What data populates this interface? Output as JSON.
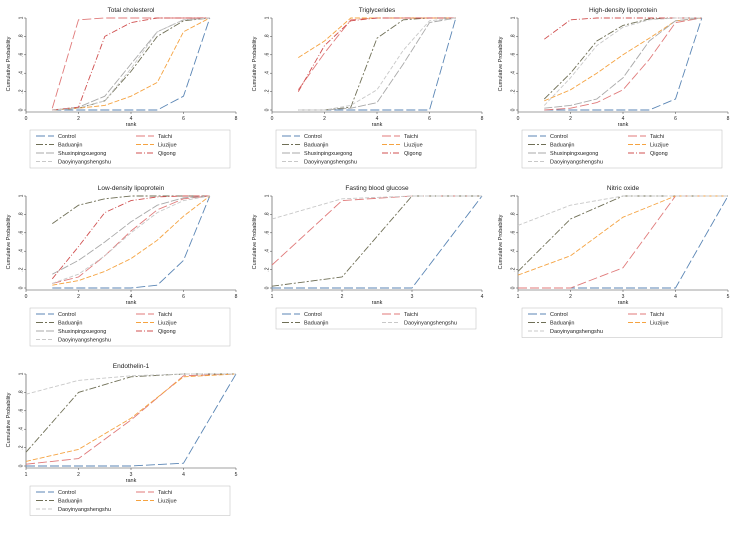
{
  "colors": {
    "Control": "#5b86b5",
    "Taichi": "#e07a7a",
    "Baduanjin": "#6f6f56",
    "Liuzijue": "#f5a341",
    "Shuxinpingxuegong": "#a9a9a9",
    "Qigong": "#d05050",
    "Daoyinyangshengshu": "#c8c8c8"
  },
  "chart_data": [
    {
      "type": "line",
      "title": "Total cholesterol",
      "xlabel": "rank",
      "ylabel": "Cumulative Probability",
      "xlim": [
        0,
        8
      ],
      "ylim": [
        0,
        1
      ],
      "xticks": [
        "0",
        "2",
        "4",
        "6",
        "8"
      ],
      "yticks": [
        "0",
        ".2",
        ".4",
        ".6",
        ".8",
        "1"
      ],
      "legend": [
        "Control",
        "Taichi",
        "Baduanjin",
        "Liuzijue",
        "Shuxinpingxuegong",
        "Qigong",
        "Daoyinyangshengshu"
      ],
      "series": [
        {
          "name": "Control",
          "x": [
            1,
            2,
            3,
            4,
            5,
            6,
            7
          ],
          "values": [
            0,
            0,
            0,
            0,
            0,
            0.15,
            1
          ]
        },
        {
          "name": "Taichi",
          "x": [
            1,
            2,
            3,
            4,
            5,
            6,
            7
          ],
          "values": [
            0.02,
            0.98,
            1,
            1,
            1,
            1,
            1
          ]
        },
        {
          "name": "Baduanjin",
          "x": [
            1,
            2,
            3,
            4,
            5,
            6,
            7
          ],
          "values": [
            0,
            0.02,
            0.1,
            0.42,
            0.8,
            0.97,
            1
          ]
        },
        {
          "name": "Liuzijue",
          "x": [
            1,
            2,
            3,
            4,
            5,
            6,
            7
          ],
          "values": [
            0,
            0.02,
            0.05,
            0.15,
            0.3,
            0.85,
            1
          ]
        },
        {
          "name": "Shuxinpingxuegong",
          "x": [
            1,
            2,
            3,
            4,
            5,
            6,
            7
          ],
          "values": [
            0,
            0.03,
            0.15,
            0.5,
            0.85,
            0.98,
            1
          ]
        },
        {
          "name": "Qigong",
          "x": [
            1,
            2,
            3,
            4,
            5,
            6,
            7
          ],
          "values": [
            0,
            0.03,
            0.8,
            0.95,
            1,
            1,
            1
          ]
        },
        {
          "name": "Daoyinyangshengshu",
          "x": [
            1,
            2,
            3,
            4,
            5,
            6,
            7
          ],
          "values": [
            0,
            0.02,
            0.1,
            0.45,
            0.85,
            0.98,
            1
          ]
        }
      ]
    },
    {
      "type": "line",
      "title": "Triglycerides",
      "xlabel": "rank",
      "ylabel": "Cumulative Probability",
      "xlim": [
        0,
        8
      ],
      "ylim": [
        0,
        1
      ],
      "xticks": [
        "0",
        "2",
        "4",
        "6",
        "8"
      ],
      "yticks": [
        "0",
        ".2",
        ".4",
        ".6",
        ".8",
        "1"
      ],
      "legend": [
        "Control",
        "Taichi",
        "Baduanjin",
        "Liuzijue",
        "Shuxinpingxuegong",
        "Qigong",
        "Daoyinyangshengshu"
      ],
      "series": [
        {
          "name": "Control",
          "x": [
            1,
            2,
            3,
            4,
            5,
            6,
            7
          ],
          "values": [
            0,
            0,
            0,
            0,
            0,
            0,
            1
          ]
        },
        {
          "name": "Taichi",
          "x": [
            1,
            2,
            3,
            4,
            5,
            6,
            7
          ],
          "values": [
            0.22,
            0.62,
            0.98,
            1,
            1,
            1,
            1
          ]
        },
        {
          "name": "Baduanjin",
          "x": [
            1,
            2,
            3,
            4,
            5,
            6,
            7
          ],
          "values": [
            0,
            0,
            0.03,
            0.78,
            0.98,
            1,
            1
          ]
        },
        {
          "name": "Liuzijue",
          "x": [
            1,
            2,
            3,
            4,
            5,
            6,
            7
          ],
          "values": [
            0.57,
            0.75,
            1,
            1,
            1,
            1,
            1
          ]
        },
        {
          "name": "Shuxinpingxuegong",
          "x": [
            1,
            2,
            3,
            4,
            5,
            6,
            7
          ],
          "values": [
            0,
            0,
            0.02,
            0.08,
            0.5,
            0.95,
            1
          ]
        },
        {
          "name": "Qigong",
          "x": [
            1,
            2,
            3,
            4,
            5,
            6,
            7
          ],
          "values": [
            0.2,
            0.7,
            0.97,
            1,
            1,
            1,
            1
          ]
        },
        {
          "name": "Daoyinyangshengshu",
          "x": [
            1,
            2,
            3,
            4,
            5,
            6,
            7
          ],
          "values": [
            0,
            0,
            0.05,
            0.22,
            0.65,
            0.97,
            1
          ]
        }
      ]
    },
    {
      "type": "line",
      "title": "High-density lipoprotein",
      "xlabel": "rank",
      "ylabel": "Cumulative Probability",
      "xlim": [
        0,
        8
      ],
      "ylim": [
        0,
        1
      ],
      "xticks": [
        "0",
        "2",
        "4",
        "6",
        "8"
      ],
      "yticks": [
        "0",
        ".2",
        ".4",
        ".6",
        ".8",
        "1"
      ],
      "legend": [
        "Control",
        "Taichi",
        "Baduanjin",
        "Liuzijue",
        "Shuxinpingxuegong",
        "Qigong",
        "Daoyinyangshengshu"
      ],
      "series": [
        {
          "name": "Control",
          "x": [
            1,
            2,
            3,
            4,
            5,
            6,
            7
          ],
          "values": [
            0,
            0,
            0,
            0,
            0,
            0.12,
            1
          ]
        },
        {
          "name": "Taichi",
          "x": [
            1,
            2,
            3,
            4,
            5,
            6,
            7
          ],
          "values": [
            0,
            0.02,
            0.08,
            0.22,
            0.55,
            0.95,
            1
          ]
        },
        {
          "name": "Baduanjin",
          "x": [
            1,
            2,
            3,
            4,
            5,
            6,
            7
          ],
          "values": [
            0.12,
            0.4,
            0.75,
            0.92,
            0.99,
            1,
            1
          ]
        },
        {
          "name": "Liuzijue",
          "x": [
            1,
            2,
            3,
            4,
            5,
            6,
            7
          ],
          "values": [
            0.1,
            0.22,
            0.4,
            0.6,
            0.78,
            0.97,
            1
          ]
        },
        {
          "name": "Shuxinpingxuegong",
          "x": [
            1,
            2,
            3,
            4,
            5,
            6,
            7
          ],
          "values": [
            0.02,
            0.05,
            0.12,
            0.35,
            0.75,
            0.97,
            1
          ]
        },
        {
          "name": "Qigong",
          "x": [
            1,
            2,
            3,
            4,
            5,
            6,
            7
          ],
          "values": [
            0.77,
            0.98,
            1,
            1,
            1,
            1,
            1
          ]
        },
        {
          "name": "Daoyinyangshengshu",
          "x": [
            1,
            2,
            3,
            4,
            5,
            6,
            7
          ],
          "values": [
            0.05,
            0.35,
            0.7,
            0.9,
            0.98,
            1,
            1
          ]
        }
      ]
    },
    {
      "type": "line",
      "title": "Low-density lipoprotein",
      "xlabel": "rank",
      "ylabel": "Cumulative Probability",
      "xlim": [
        0,
        8
      ],
      "ylim": [
        0,
        1
      ],
      "xticks": [
        "0",
        "2",
        "4",
        "6",
        "8"
      ],
      "yticks": [
        "0",
        ".2",
        ".4",
        ".6",
        ".8",
        "1"
      ],
      "legend": [
        "Control",
        "Taichi",
        "Baduanjin",
        "Liuzijue",
        "Shuxinpingxuegong",
        "Qigong",
        "Daoyinyangshengshu"
      ],
      "series": [
        {
          "name": "Control",
          "x": [
            1,
            2,
            3,
            4,
            5,
            6,
            7
          ],
          "values": [
            0,
            0,
            0,
            0,
            0.03,
            0.3,
            1
          ]
        },
        {
          "name": "Taichi",
          "x": [
            1,
            2,
            3,
            4,
            5,
            6,
            7
          ],
          "values": [
            0.05,
            0.12,
            0.35,
            0.62,
            0.85,
            0.97,
            1
          ]
        },
        {
          "name": "Baduanjin",
          "x": [
            1,
            2,
            3,
            4,
            5,
            6,
            7
          ],
          "values": [
            0.7,
            0.9,
            0.97,
            1,
            1,
            1,
            1
          ]
        },
        {
          "name": "Liuzijue",
          "x": [
            1,
            2,
            3,
            4,
            5,
            6,
            7
          ],
          "values": [
            0.03,
            0.08,
            0.18,
            0.32,
            0.52,
            0.78,
            1
          ]
        },
        {
          "name": "Shuxinpingxuegong",
          "x": [
            1,
            2,
            3,
            4,
            5,
            6,
            7
          ],
          "values": [
            0.15,
            0.3,
            0.5,
            0.72,
            0.9,
            0.98,
            1
          ]
        },
        {
          "name": "Qigong",
          "x": [
            1,
            2,
            3,
            4,
            5,
            6,
            7
          ],
          "values": [
            0.1,
            0.45,
            0.82,
            0.95,
            0.99,
            1,
            1
          ]
        },
        {
          "name": "Daoyinyangshengshu",
          "x": [
            1,
            2,
            3,
            4,
            5,
            6,
            7
          ],
          "values": [
            0.05,
            0.15,
            0.35,
            0.6,
            0.82,
            0.95,
            1
          ]
        }
      ]
    },
    {
      "type": "line",
      "title": "Fasting blood glucose",
      "xlabel": "rank",
      "ylabel": "Cumulative Probability",
      "xlim": [
        1,
        4
      ],
      "ylim": [
        0,
        1
      ],
      "xticks": [
        "1",
        "2",
        "3",
        "4"
      ],
      "yticks": [
        "0",
        ".2",
        ".4",
        ".6",
        ".8",
        "1"
      ],
      "legend": [
        "Control",
        "Taichi",
        "Baduanjin",
        "Daoyinyangshengshu"
      ],
      "series": [
        {
          "name": "Control",
          "x": [
            1,
            2,
            3,
            4
          ],
          "values": [
            0,
            0,
            0,
            1
          ]
        },
        {
          "name": "Taichi",
          "x": [
            1,
            2,
            3,
            4
          ],
          "values": [
            0.25,
            0.95,
            1,
            1
          ]
        },
        {
          "name": "Baduanjin",
          "x": [
            1,
            2,
            3,
            4
          ],
          "values": [
            0.02,
            0.12,
            1,
            1
          ]
        },
        {
          "name": "Daoyinyangshengshu",
          "x": [
            1,
            2,
            3,
            4
          ],
          "values": [
            0.75,
            0.97,
            1,
            1
          ]
        }
      ]
    },
    {
      "type": "line",
      "title": "Nitric oxide",
      "xlabel": "rank",
      "ylabel": "Cumulative Probability",
      "xlim": [
        1,
        5
      ],
      "ylim": [
        0,
        1
      ],
      "xticks": [
        "1",
        "2",
        "3",
        "4",
        "5"
      ],
      "yticks": [
        "0",
        ".2",
        ".4",
        ".6",
        ".8",
        "1"
      ],
      "legend": [
        "Control",
        "Taichi",
        "Baduanjin",
        "Liuzijue",
        "Daoyinyangshengshu"
      ],
      "series": [
        {
          "name": "Control",
          "x": [
            1,
            2,
            3,
            4,
            5
          ],
          "values": [
            0,
            0,
            0,
            0,
            1
          ]
        },
        {
          "name": "Taichi",
          "x": [
            1,
            2,
            3,
            4,
            5
          ],
          "values": [
            0,
            0,
            0.22,
            1,
            1
          ]
        },
        {
          "name": "Baduanjin",
          "x": [
            1,
            2,
            3,
            4,
            5
          ],
          "values": [
            0.18,
            0.75,
            1,
            1,
            1
          ]
        },
        {
          "name": "Liuzijue",
          "x": [
            1,
            2,
            3,
            4,
            5
          ],
          "values": [
            0.14,
            0.35,
            0.77,
            1,
            1
          ]
        },
        {
          "name": "Daoyinyangshengshu",
          "x": [
            1,
            2,
            3,
            4,
            5
          ],
          "values": [
            0.68,
            0.9,
            1,
            1,
            1
          ]
        }
      ]
    },
    {
      "type": "line",
      "title": "Endothelin-1",
      "xlabel": "rank",
      "ylabel": "Cumulative Probability",
      "xlim": [
        1,
        5
      ],
      "ylim": [
        0,
        1
      ],
      "xticks": [
        "1",
        "2",
        "3",
        "4",
        "5"
      ],
      "yticks": [
        "0",
        ".2",
        ".4",
        ".6",
        ".8",
        "1"
      ],
      "legend": [
        "Control",
        "Taichi",
        "Baduanjin",
        "Liuzijue",
        "Daoyinyangshengshu"
      ],
      "series": [
        {
          "name": "Control",
          "x": [
            1,
            2,
            3,
            4,
            5
          ],
          "values": [
            0,
            0,
            0,
            0.03,
            1
          ]
        },
        {
          "name": "Taichi",
          "x": [
            1,
            2,
            3,
            4,
            5
          ],
          "values": [
            0.02,
            0.08,
            0.5,
            0.98,
            1
          ]
        },
        {
          "name": "Baduanjin",
          "x": [
            1,
            2,
            3,
            4,
            5
          ],
          "values": [
            0.15,
            0.8,
            0.97,
            1,
            1
          ]
        },
        {
          "name": "Liuzijue",
          "x": [
            1,
            2,
            3,
            4,
            5
          ],
          "values": [
            0.05,
            0.18,
            0.52,
            0.97,
            1
          ]
        },
        {
          "name": "Daoyinyangshengshu",
          "x": [
            1,
            2,
            3,
            4,
            5
          ],
          "values": [
            0.78,
            0.93,
            0.98,
            1,
            1
          ]
        }
      ]
    }
  ]
}
